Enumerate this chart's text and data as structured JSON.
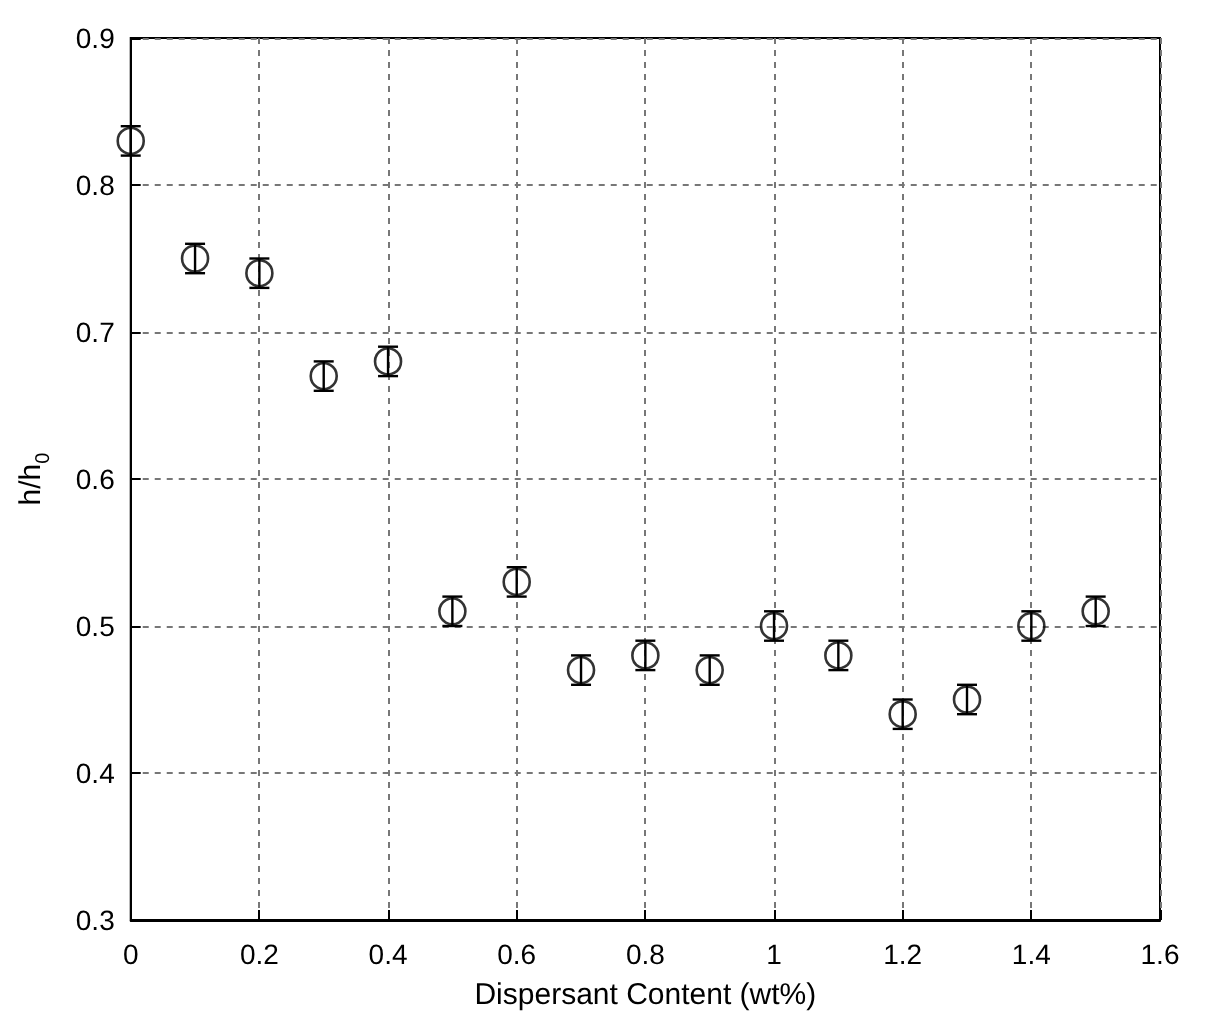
{
  "chart_data": {
    "type": "scatter",
    "xlabel": "Dispersant Content (wt%)",
    "ylabel": "h/h$_{0}$",
    "x": [
      0,
      0.1,
      0.2,
      0.3,
      0.4,
      0.5,
      0.6,
      0.7,
      0.8,
      0.9,
      1.0,
      1.1,
      1.2,
      1.3,
      1.4,
      1.5
    ],
    "series": [
      {
        "color": "#000000",
        "values": [
          0.83,
          0.75,
          0.74,
          0.67,
          0.68,
          0.51,
          0.53,
          0.47,
          0.48,
          0.47,
          0.5,
          0.48,
          0.44,
          0.45,
          0.5,
          0.51
        ],
        "errors": [
          0.01,
          0.01,
          0.01,
          0.01,
          0.01,
          0.01,
          0.01,
          0.01,
          0.01,
          0.01,
          0.01,
          0.01,
          0.01,
          0.01,
          0.01,
          0.01
        ]
      }
    ],
    "xlim": [
      0,
      1.6
    ],
    "xticks": [
      0,
      0.2,
      0.4,
      0.6,
      0.8,
      1,
      1.2,
      1.4,
      1.6
    ],
    "ylim": [
      0.3,
      0.9
    ],
    "yticks": [
      0.3,
      0.4,
      0.5,
      0.6,
      0.7,
      0.8,
      0.9
    ],
    "grid": true,
    "marker": "circle"
  }
}
